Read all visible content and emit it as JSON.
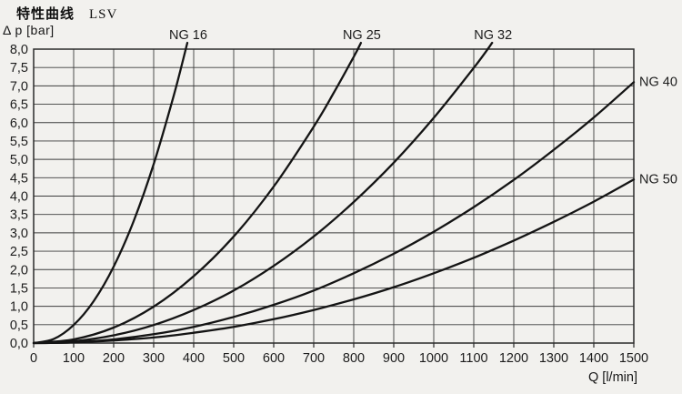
{
  "page": {
    "background": "#f2f1ee"
  },
  "header": {
    "title": "特性曲线",
    "subtitle": "LSV"
  },
  "chart_data": {
    "type": "line",
    "title": "特性曲线 LSV",
    "xlabel": "Q [l/min]",
    "ylabel": "Δ p [bar]",
    "xlim": [
      0,
      1500
    ],
    "ylim": [
      0,
      8
    ],
    "grid": true,
    "legend_position": "inline-curve-labels",
    "x_tick_labels": [
      "0",
      "100",
      "200",
      "300",
      "400",
      "500",
      "600",
      "700",
      "800",
      "900",
      "1000",
      "1100",
      "1200",
      "1300",
      "1400",
      "1500"
    ],
    "x_tick_values": [
      0,
      100,
      200,
      300,
      400,
      500,
      600,
      700,
      800,
      900,
      1000,
      1100,
      1200,
      1300,
      1400,
      1500
    ],
    "y_tick_labels": [
      "0,0",
      "0,5",
      "1,0",
      "1,5",
      "2,0",
      "2,5",
      "3,0",
      "3,5",
      "4,0",
      "4,5",
      "5,0",
      "5,5",
      "6,0",
      "6,5",
      "7,0",
      "7,5",
      "8,0"
    ],
    "y_tick_values": [
      0,
      0.5,
      1,
      1.5,
      2,
      2.5,
      3,
      3.5,
      4,
      4.5,
      5,
      5.5,
      6,
      6.5,
      7,
      7.5,
      8
    ],
    "colors": {
      "curve": "#141414",
      "grid": "#3d3d3d",
      "border": "#2a2a2a",
      "text": "#1c1c1c"
    },
    "series": [
      {
        "name": "NG 16",
        "label_anchor": "top",
        "points": [
          [
            0,
            0
          ],
          [
            50,
            0.11
          ],
          [
            100,
            0.49
          ],
          [
            150,
            1.14
          ],
          [
            200,
            2.08
          ],
          [
            250,
            3.32
          ],
          [
            300,
            4.87
          ],
          [
            350,
            6.73
          ],
          [
            384,
            8.17
          ]
        ]
      },
      {
        "name": "NG 25",
        "label_anchor": "top",
        "points": [
          [
            0,
            0
          ],
          [
            100,
            0.1
          ],
          [
            200,
            0.42
          ],
          [
            300,
            0.99
          ],
          [
            400,
            1.82
          ],
          [
            500,
            2.9
          ],
          [
            600,
            4.26
          ],
          [
            700,
            5.89
          ],
          [
            750,
            6.81
          ],
          [
            800,
            7.79
          ],
          [
            818,
            8.17
          ]
        ]
      },
      {
        "name": "NG 32",
        "label_anchor": "top",
        "points": [
          [
            0,
            0
          ],
          [
            100,
            0.05
          ],
          [
            200,
            0.21
          ],
          [
            300,
            0.49
          ],
          [
            400,
            0.9
          ],
          [
            500,
            1.43
          ],
          [
            600,
            2.1
          ],
          [
            700,
            2.9
          ],
          [
            800,
            3.84
          ],
          [
            900,
            4.91
          ],
          [
            1000,
            6.13
          ],
          [
            1100,
            7.49
          ],
          [
            1146,
            8.17
          ]
        ]
      },
      {
        "name": "NG 40",
        "label_anchor": "right",
        "points": [
          [
            0,
            0
          ],
          [
            100,
            0.02
          ],
          [
            200,
            0.1
          ],
          [
            300,
            0.24
          ],
          [
            400,
            0.44
          ],
          [
            500,
            0.71
          ],
          [
            600,
            1.04
          ],
          [
            700,
            1.43
          ],
          [
            800,
            1.9
          ],
          [
            900,
            2.43
          ],
          [
            1000,
            3.03
          ],
          [
            1100,
            3.7
          ],
          [
            1200,
            4.44
          ],
          [
            1300,
            5.26
          ],
          [
            1400,
            6.14
          ],
          [
            1500,
            7.1
          ]
        ]
      },
      {
        "name": "NG 50",
        "label_anchor": "right",
        "points": [
          [
            0,
            0
          ],
          [
            100,
            0.02
          ],
          [
            200,
            0.07
          ],
          [
            300,
            0.15
          ],
          [
            400,
            0.28
          ],
          [
            500,
            0.44
          ],
          [
            600,
            0.65
          ],
          [
            700,
            0.9
          ],
          [
            800,
            1.19
          ],
          [
            900,
            1.52
          ],
          [
            1000,
            1.9
          ],
          [
            1100,
            2.32
          ],
          [
            1200,
            2.79
          ],
          [
            1300,
            3.3
          ],
          [
            1400,
            3.85
          ],
          [
            1500,
            4.45
          ]
        ]
      }
    ]
  }
}
